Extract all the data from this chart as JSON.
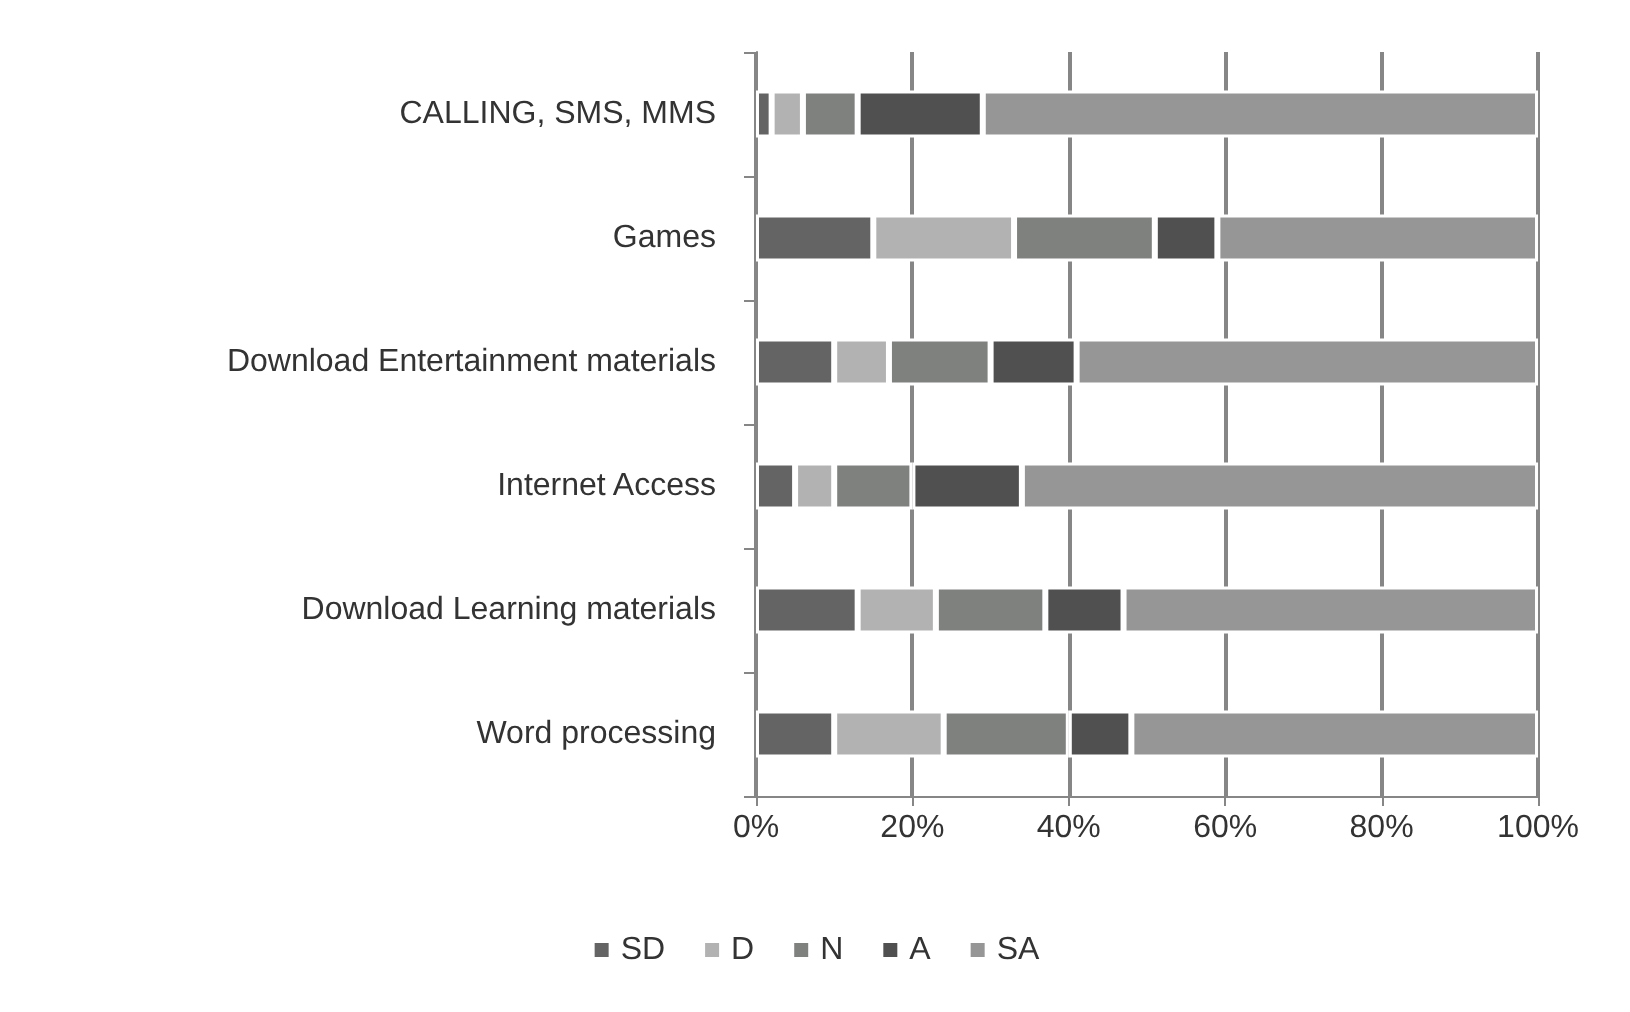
{
  "chart_data": {
    "type": "bar",
    "orientation": "horizontal",
    "stacked": true,
    "categories": [
      "CALLING, SMS, MMS",
      "Games",
      "Download Entertainment materials",
      "Internet Access",
      "Download Learning materials",
      "Word processing"
    ],
    "series": [
      {
        "name": "SD",
        "color": "#646464",
        "values": [
          2,
          15,
          10,
          5,
          13,
          10
        ]
      },
      {
        "name": "D",
        "color": "#b2b2b2",
        "values": [
          4,
          18,
          7,
          5,
          10,
          14
        ]
      },
      {
        "name": "N",
        "color": "#7f817f",
        "values": [
          7,
          18,
          13,
          10,
          14,
          16
        ]
      },
      {
        "name": "A",
        "color": "#505050",
        "values": [
          16,
          8,
          11,
          14,
          10,
          8
        ]
      },
      {
        "name": "SA",
        "color": "#969696",
        "values": [
          71,
          41,
          59,
          66,
          53,
          52
        ]
      }
    ],
    "xlim": [
      0,
      100
    ],
    "xticks": [
      {
        "value": 0,
        "label": "0%"
      },
      {
        "value": 20,
        "label": "20%"
      },
      {
        "value": 40,
        "label": "40%"
      },
      {
        "value": 60,
        "label": "60%"
      },
      {
        "value": 80,
        "label": "80%"
      },
      {
        "value": 100,
        "label": "100%"
      }
    ],
    "grid": "x",
    "legend": "bottom"
  }
}
